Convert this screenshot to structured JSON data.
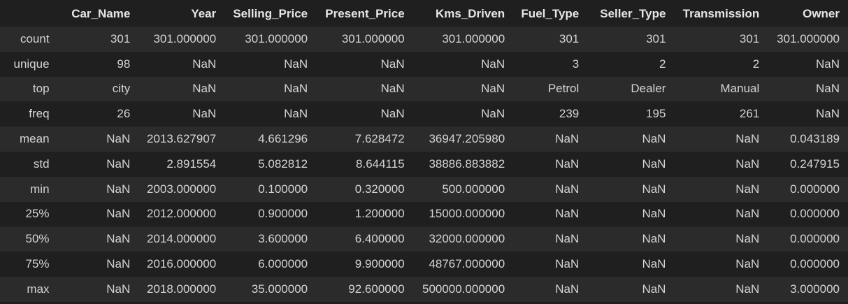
{
  "table": {
    "index_header": "",
    "columns": [
      "Car_Name",
      "Year",
      "Selling_Price",
      "Present_Price",
      "Kms_Driven",
      "Fuel_Type",
      "Seller_Type",
      "Transmission",
      "Owner"
    ],
    "rows": [
      {
        "label": "count",
        "cells": [
          "301",
          "301.000000",
          "301.000000",
          "301.000000",
          "301.000000",
          "301",
          "301",
          "301",
          "301.000000"
        ]
      },
      {
        "label": "unique",
        "cells": [
          "98",
          "NaN",
          "NaN",
          "NaN",
          "NaN",
          "3",
          "2",
          "2",
          "NaN"
        ]
      },
      {
        "label": "top",
        "cells": [
          "city",
          "NaN",
          "NaN",
          "NaN",
          "NaN",
          "Petrol",
          "Dealer",
          "Manual",
          "NaN"
        ]
      },
      {
        "label": "freq",
        "cells": [
          "26",
          "NaN",
          "NaN",
          "NaN",
          "NaN",
          "239",
          "195",
          "261",
          "NaN"
        ]
      },
      {
        "label": "mean",
        "cells": [
          "NaN",
          "2013.627907",
          "4.661296",
          "7.628472",
          "36947.205980",
          "NaN",
          "NaN",
          "NaN",
          "0.043189"
        ]
      },
      {
        "label": "std",
        "cells": [
          "NaN",
          "2.891554",
          "5.082812",
          "8.644115",
          "38886.883882",
          "NaN",
          "NaN",
          "NaN",
          "0.247915"
        ]
      },
      {
        "label": "min",
        "cells": [
          "NaN",
          "2003.000000",
          "0.100000",
          "0.320000",
          "500.000000",
          "NaN",
          "NaN",
          "NaN",
          "0.000000"
        ]
      },
      {
        "label": "25%",
        "cells": [
          "NaN",
          "2012.000000",
          "0.900000",
          "1.200000",
          "15000.000000",
          "NaN",
          "NaN",
          "NaN",
          "0.000000"
        ]
      },
      {
        "label": "50%",
        "cells": [
          "NaN",
          "2014.000000",
          "3.600000",
          "6.400000",
          "32000.000000",
          "NaN",
          "NaN",
          "NaN",
          "0.000000"
        ]
      },
      {
        "label": "75%",
        "cells": [
          "NaN",
          "2016.000000",
          "6.000000",
          "9.900000",
          "48767.000000",
          "NaN",
          "NaN",
          "NaN",
          "0.000000"
        ]
      },
      {
        "label": "max",
        "cells": [
          "NaN",
          "2018.000000",
          "35.000000",
          "92.600000",
          "500000.000000",
          "NaN",
          "NaN",
          "NaN",
          "3.000000"
        ]
      }
    ]
  }
}
